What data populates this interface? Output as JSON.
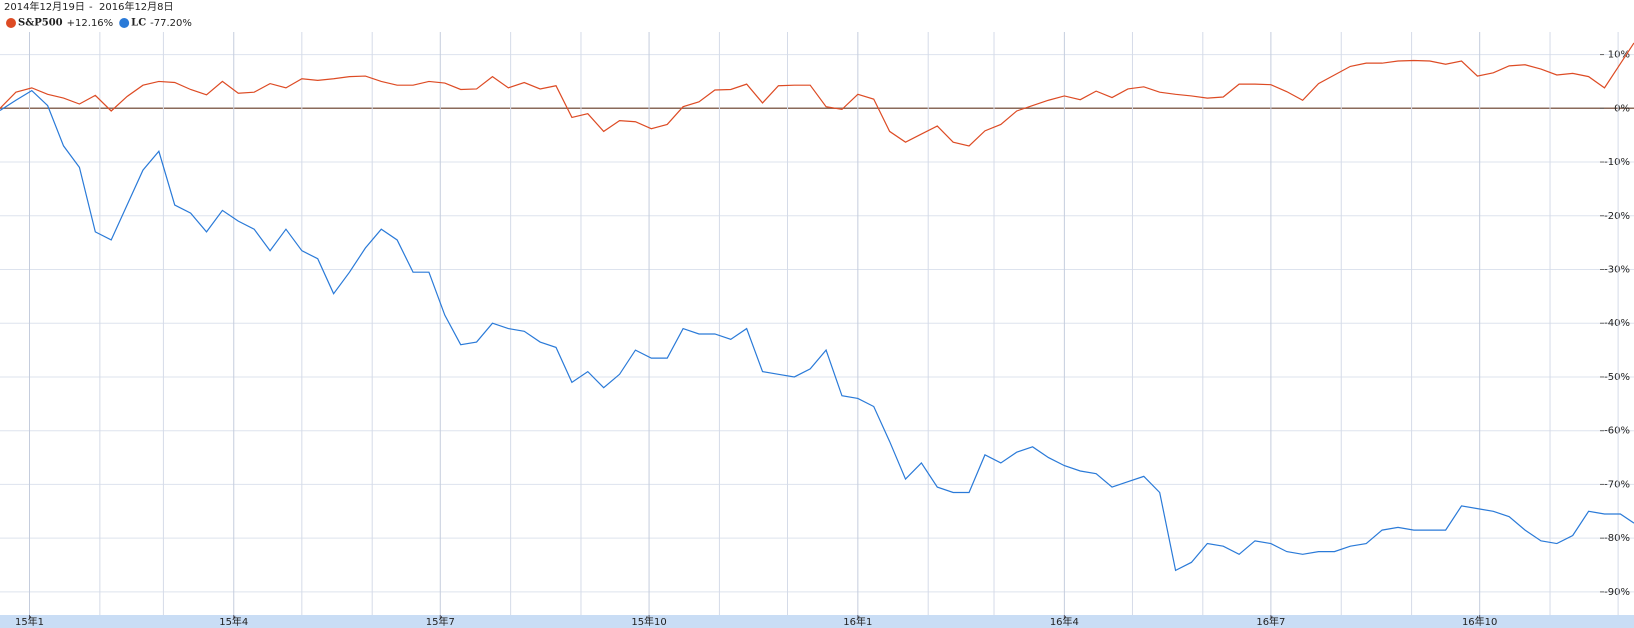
{
  "chart_data": {
    "type": "line",
    "range_labels": [
      "2014年12月19日",
      "2016年12月8日"
    ],
    "range_separator": "-",
    "x": [
      "2014-12-19",
      "2014-12-26",
      "2015-01-02",
      "2015-01-09",
      "2015-01-16",
      "2015-01-23",
      "2015-01-30",
      "2015-02-06",
      "2015-02-13",
      "2015-02-20",
      "2015-02-27",
      "2015-03-06",
      "2015-03-13",
      "2015-03-20",
      "2015-03-27",
      "2015-04-03",
      "2015-04-10",
      "2015-04-17",
      "2015-04-24",
      "2015-05-01",
      "2015-05-08",
      "2015-05-15",
      "2015-05-22",
      "2015-05-29",
      "2015-06-05",
      "2015-06-12",
      "2015-06-19",
      "2015-06-26",
      "2015-07-03",
      "2015-07-10",
      "2015-07-17",
      "2015-07-24",
      "2015-07-31",
      "2015-08-07",
      "2015-08-14",
      "2015-08-21",
      "2015-08-28",
      "2015-09-04",
      "2015-09-11",
      "2015-09-18",
      "2015-09-25",
      "2015-10-02",
      "2015-10-09",
      "2015-10-16",
      "2015-10-23",
      "2015-10-30",
      "2015-11-06",
      "2015-11-13",
      "2015-11-20",
      "2015-11-27",
      "2015-12-04",
      "2015-12-11",
      "2015-12-18",
      "2015-12-25",
      "2016-01-01",
      "2016-01-08",
      "2016-01-15",
      "2016-01-22",
      "2016-01-29",
      "2016-02-05",
      "2016-02-12",
      "2016-02-19",
      "2016-02-26",
      "2016-03-04",
      "2016-03-11",
      "2016-03-18",
      "2016-03-25",
      "2016-04-01",
      "2016-04-08",
      "2016-04-15",
      "2016-04-22",
      "2016-04-29",
      "2016-05-06",
      "2016-05-13",
      "2016-05-20",
      "2016-05-27",
      "2016-06-03",
      "2016-06-10",
      "2016-06-17",
      "2016-06-24",
      "2016-07-01",
      "2016-07-08",
      "2016-07-15",
      "2016-07-22",
      "2016-07-29",
      "2016-08-05",
      "2016-08-12",
      "2016-08-19",
      "2016-08-26",
      "2016-09-02",
      "2016-09-09",
      "2016-09-16",
      "2016-09-23",
      "2016-09-30",
      "2016-10-07",
      "2016-10-14",
      "2016-10-21",
      "2016-10-28",
      "2016-11-04",
      "2016-11-11",
      "2016-11-18",
      "2016-11-25",
      "2016-12-02",
      "2016-12-08"
    ],
    "series": [
      {
        "name": "S&P500",
        "color": "#dd4b24",
        "change": {
          "value": 12.16,
          "label": "+12.16%"
        },
        "change_color": "#2e9a2e",
        "values": [
          0,
          3,
          3.8,
          2.6,
          1.9,
          0.8,
          2.4,
          -0.5,
          2.2,
          4.3,
          5,
          4.8,
          3.5,
          2.5,
          5,
          2.8,
          3,
          4.6,
          3.8,
          5.5,
          5.2,
          5.5,
          5.9,
          6,
          5,
          4.3,
          4.3,
          5,
          4.7,
          3.5,
          3.6,
          5.9,
          3.8,
          4.8,
          3.6,
          4.2,
          -1.7,
          -1,
          -4.3,
          -2.3,
          -2.5,
          -3.8,
          -3,
          0.3,
          1.2,
          3.4,
          3.5,
          4.5,
          1,
          4.2,
          4.3,
          4.3,
          0.3,
          -0.2,
          2.6,
          1.7,
          -4.3,
          -6.3,
          -4.8,
          -3.3,
          -6.3,
          -7,
          -4.2,
          -3,
          -0.5,
          0.5,
          1.5,
          2.3,
          1.6,
          3.2,
          2,
          3.6,
          4,
          3,
          2.6,
          2.3,
          1.9,
          2.1,
          4.5,
          4.5,
          4.4,
          3.1,
          1.5,
          4.6,
          6.2,
          7.8,
          8.4,
          8.4,
          8.8,
          8.9,
          8.8,
          8.2,
          8.8,
          6,
          6.6,
          7.9,
          8.1,
          7.3,
          6.2,
          6.5,
          5.9,
          3.8,
          8.3,
          12.16
        ]
      },
      {
        "name": "LC",
        "color": "#2a7ad8",
        "change": {
          "value": -77.2,
          "label": "-77.20%"
        },
        "change_color": "#d4253a",
        "values": [
          -0.4,
          1.5,
          3.3,
          0.5,
          -7,
          -11,
          -23,
          -24.5,
          -18,
          -11.5,
          -8,
          -18,
          -19.5,
          -23,
          -19,
          -21,
          -22.5,
          -26.5,
          -22.5,
          -26.5,
          -28,
          -34.5,
          -30.5,
          -26,
          -22.5,
          -24.5,
          -30.5,
          -30.5,
          -38.5,
          -44,
          -43.5,
          -40,
          -41,
          -41.5,
          -43.5,
          -44.5,
          -51,
          -49,
          -52,
          -49.5,
          -45,
          -46.5,
          -46.5,
          -41,
          -42,
          -42,
          -43,
          -41,
          -49,
          -49.5,
          -50,
          -48.5,
          -45,
          -53.5,
          -54,
          -55.5,
          -62,
          -69,
          -66,
          -70.5,
          -71.5,
          -71.5,
          -64.5,
          -66,
          -64,
          -63,
          -65,
          -66.5,
          -67.5,
          -68,
          -70.5,
          -69.5,
          -68.5,
          -71.5,
          -86,
          -84.5,
          -81,
          -81.5,
          -83,
          -80.5,
          -81,
          -82.5,
          -83,
          -82.5,
          -82.5,
          -81.5,
          -81,
          -78.5,
          -78,
          -78.5,
          -78.5,
          -78.5,
          -74,
          -74.5,
          -75,
          -76,
          -78.5,
          -80.5,
          -81,
          -79.5,
          -75,
          -75.5,
          -75.5,
          -77.2
        ]
      }
    ],
    "xlim": [
      "2014-12-19",
      "2016-12-08"
    ],
    "xticks": [
      {
        "value": "2015-01-01",
        "label": "15年1"
      },
      {
        "value": "2015-04-01",
        "label": "15年4"
      },
      {
        "value": "2015-07-01",
        "label": "15年7"
      },
      {
        "value": "2015-10-01",
        "label": "15年10"
      },
      {
        "value": "2016-01-01",
        "label": "16年1"
      },
      {
        "value": "2016-04-01",
        "label": "16年4"
      },
      {
        "value": "2016-07-01",
        "label": "16年7"
      },
      {
        "value": "2016-10-01",
        "label": "16年10"
      }
    ],
    "xminorticks": [
      "2015-02-01",
      "2015-03-01",
      "2015-05-01",
      "2015-06-01",
      "2015-08-01",
      "2015-09-01",
      "2015-11-01",
      "2015-12-01",
      "2016-02-01",
      "2016-03-01",
      "2016-05-01",
      "2016-06-01",
      "2016-08-01",
      "2016-09-01",
      "2016-11-01",
      "2016-12-01"
    ],
    "ylim": [
      -94.3,
      14.2
    ],
    "yticks": [
      {
        "value": 10,
        "label": "10%"
      },
      {
        "value": 0,
        "label": "0%"
      },
      {
        "value": -10,
        "label": "-10%"
      },
      {
        "value": -20,
        "label": "-20%"
      },
      {
        "value": -30,
        "label": "-30%"
      },
      {
        "value": -40,
        "label": "-40%"
      },
      {
        "value": -50,
        "label": "-50%"
      },
      {
        "value": -60,
        "label": "-60%"
      },
      {
        "value": -70,
        "label": "-70%"
      },
      {
        "value": -80,
        "label": "-80%"
      },
      {
        "value": -90,
        "label": "-90%"
      }
    ],
    "grid": true
  }
}
